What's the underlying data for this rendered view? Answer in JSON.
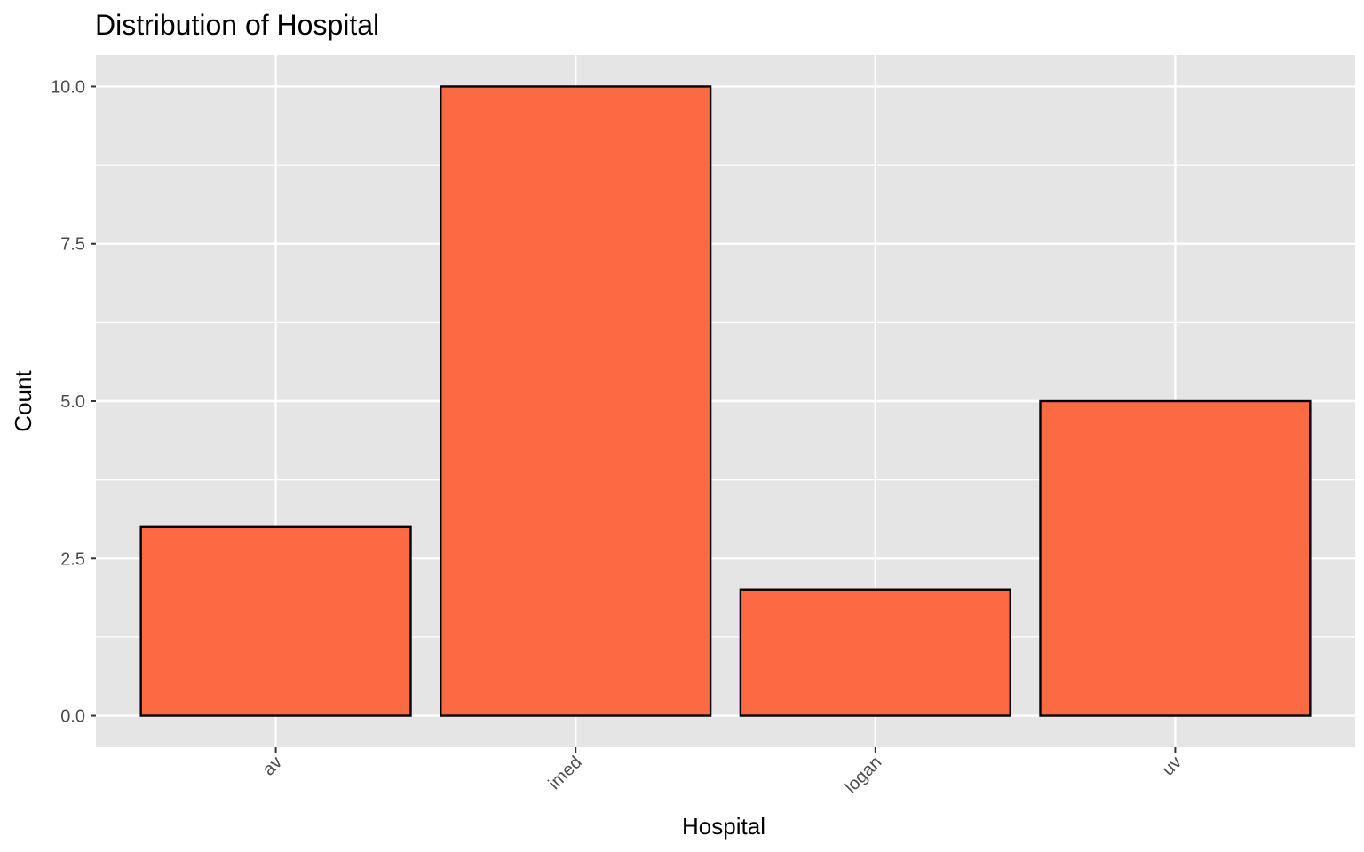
{
  "chart_data": {
    "type": "bar",
    "title": "Distribution of Hospital",
    "xlabel": "Hospital",
    "ylabel": "Count",
    "categories": [
      "av",
      "imed",
      "logan",
      "uv"
    ],
    "values": [
      3,
      10,
      2,
      5
    ],
    "ylim": [
      -0.5,
      10.5
    ],
    "yticks": [
      "0.0",
      "2.5",
      "5.0",
      "7.5",
      "10.0"
    ],
    "grid": true,
    "x_tick_rotation_deg": 45,
    "colors": {
      "bar_fill": "#FC6A43",
      "bar_outline": "#000000",
      "panel_background": "#E5E5E5",
      "grid": "#FFFFFF"
    }
  }
}
